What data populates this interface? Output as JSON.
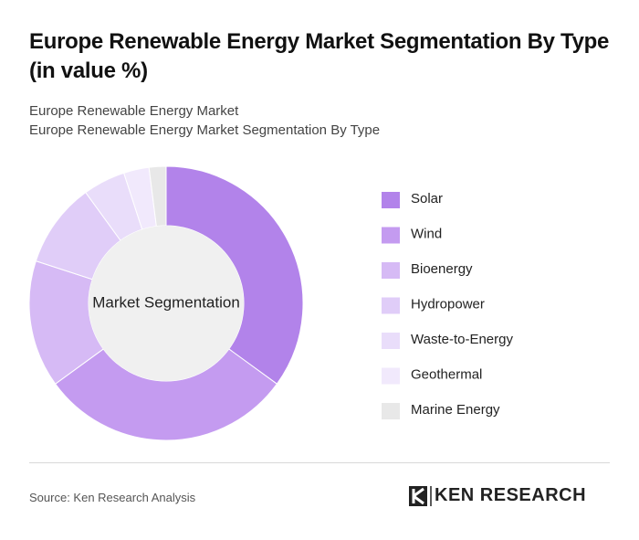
{
  "chart_data": {
    "type": "donut",
    "title": "Europe Renewable Energy Market Segmentation By Type (in value %)",
    "subtitles": [
      "Europe Renewable Energy Market",
      "Europe Renewable Energy Market Segmentation By Type"
    ],
    "center_label": "Market Segmentation",
    "categories": [
      "Solar",
      "Wind",
      "Bioenergy",
      "Hydropower",
      "Waste-to-Energy",
      "Geothermal",
      "Marine Energy"
    ],
    "values": [
      35,
      30,
      15,
      10,
      5,
      3,
      2
    ],
    "colors": [
      "#b283ea",
      "#c49bf0",
      "#d6baf5",
      "#e0cdf8",
      "#e9ddfa",
      "#f1e9fc",
      "#e8e8e8"
    ]
  },
  "source": "Source: Ken Research Analysis",
  "brand": "KEN RESEARCH"
}
